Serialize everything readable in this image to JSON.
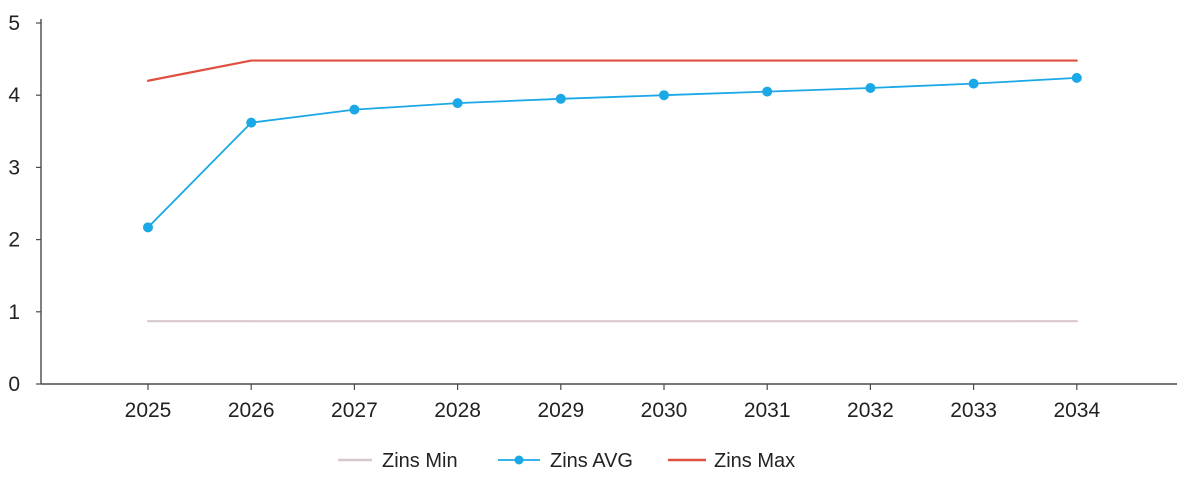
{
  "chart_data": {
    "type": "line",
    "title": "",
    "xlabel": "",
    "ylabel": "",
    "categories": [
      "2025",
      "2026",
      "2027",
      "2028",
      "2029",
      "2030",
      "2031",
      "2032",
      "2033",
      "2034"
    ],
    "ylim": [
      0,
      5
    ],
    "yticks": [
      0,
      1,
      2,
      3,
      4,
      5
    ],
    "grid": false,
    "legend_position": "bottom-center",
    "series": [
      {
        "name": "Zins Min",
        "color": "#d8c8d0",
        "markers": false,
        "values": [
          0.87,
          0.87,
          0.87,
          0.87,
          0.87,
          0.87,
          0.87,
          0.87,
          0.87,
          0.87
        ]
      },
      {
        "name": "Zins AVG",
        "color": "#1ba8e6",
        "markers": true,
        "values": [
          2.17,
          3.62,
          3.8,
          3.89,
          3.95,
          4.0,
          4.05,
          4.1,
          4.16,
          4.24
        ]
      },
      {
        "name": "Zins Max",
        "color": "#e05040",
        "markers": false,
        "values": [
          4.2,
          4.48,
          4.48,
          4.48,
          4.48,
          4.48,
          4.48,
          4.48,
          4.48,
          4.48
        ]
      }
    ]
  }
}
